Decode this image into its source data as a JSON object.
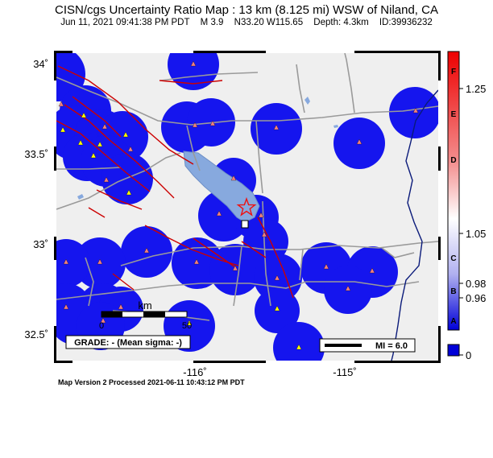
{
  "header": {
    "title": "CISN/cgs Uncertainty Ratio Map : 13 km (8.125 mi) WSW of Niland, CA",
    "date": "Jun 11, 2021 09:41:38 PM PDT",
    "magnitude": "M 3.9",
    "location": "N33.20 W115.65",
    "depth": "Depth: 4.3km",
    "event_id": "ID:39936232"
  },
  "map": {
    "lat_ticks": [
      "34˚",
      "33.5˚",
      "33˚",
      "32.5˚"
    ],
    "lon_ticks": [
      "-116˚",
      "-115˚"
    ],
    "scale_bar_unit": "km",
    "scale_bar_labels": [
      "0",
      "50"
    ],
    "grade_label": "GRADE: - (Mean sigma: -)",
    "mi_legend": "MI = 6.0",
    "epicenter": {
      "lon": -115.65,
      "lat": 33.2
    },
    "colors": {
      "land": "#efefef",
      "lake": "#87a9de",
      "station_blob": "#1a1aee",
      "fault": "#cc0000",
      "road": "#9a9a9a",
      "border": "#0a1a7a"
    }
  },
  "colorbar": {
    "letters": [
      "F",
      "E",
      "D",
      "C",
      "B",
      "A"
    ],
    "values": [
      "1.25",
      "1.05",
      "0.98",
      "0.96",
      "0"
    ]
  },
  "footer": "Map Version 2 Processed 2021-06-11 10:43:12 PM PDT"
}
